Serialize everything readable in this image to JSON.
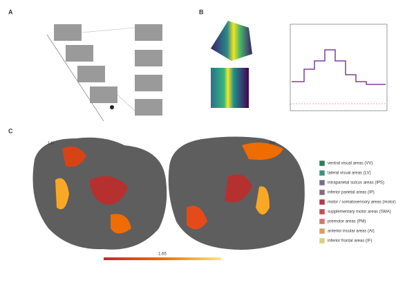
{
  "panels": {
    "a": "A",
    "b": "B",
    "c": "C"
  },
  "hemispheres": {
    "left": "LH",
    "right": "RH"
  },
  "legend": [
    {
      "label": "ventral visual areas (VV)",
      "color": "#2e7d4f"
    },
    {
      "label": "lateral visual areas (LV)",
      "color": "#3f8f7a"
    },
    {
      "label": "intraparietal sulcus areas (IPS)",
      "color": "#7a6a8a"
    },
    {
      "label": "inferior parietal areas (IP)",
      "color": "#8a6a7a"
    },
    {
      "label": "motor / somatosensory areas (motor)",
      "color": "#b03a4a"
    },
    {
      "label": "supplementary motor areas (SMA)",
      "color": "#c0505a"
    },
    {
      "label": "premotor areas (PM)",
      "color": "#d07a6a"
    },
    {
      "label": "anterior insular areas (AI)",
      "color": "#d9a05a"
    },
    {
      "label": "inferior frontal areas (IF)",
      "color": "#d9d080"
    }
  ],
  "colorbar": {
    "label": "1.65"
  }
}
